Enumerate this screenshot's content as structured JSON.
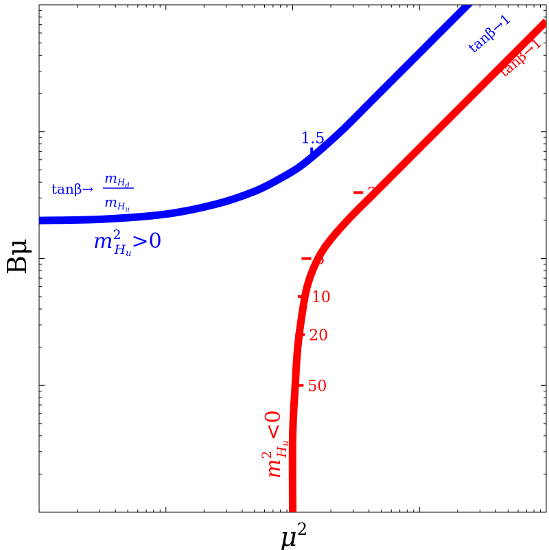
{
  "chart_data": {
    "type": "line",
    "xlabel": "μ",
    "xlabel_sup": "2",
    "ylabel": "Bμ",
    "xscale": "log",
    "yscale": "log",
    "xlim_decades": [
      0,
      4
    ],
    "ylim_decades": [
      0,
      4
    ],
    "grid": false,
    "series": [
      {
        "color": "#0000ff",
        "points": [
          [
            0.0,
            2.3
          ],
          [
            0.5,
            2.31
          ],
          [
            1.0,
            2.35
          ],
          [
            1.4,
            2.43
          ],
          [
            1.7,
            2.53
          ],
          [
            1.9,
            2.63
          ],
          [
            2.05,
            2.72
          ],
          [
            2.2,
            2.84
          ],
          [
            2.4,
            3.02
          ],
          [
            2.6,
            3.22
          ],
          [
            2.8,
            3.42
          ],
          [
            3.0,
            3.62
          ],
          [
            3.2,
            3.82
          ],
          [
            3.4,
            4.02
          ],
          [
            3.5,
            4.12
          ]
        ],
        "ticks": [
          {
            "label": "1.5",
            "at": [
              2.15,
              2.8
            ]
          }
        ],
        "annotations": {
          "upper": {
            "text": "tanβ→1"
          },
          "ratio_prefix": "tanβ→",
          "ratio_num": "m",
          "ratio_num_sub": "H",
          "ratio_num_subsub": "d",
          "ratio_den": "m",
          "ratio_den_sub": "H",
          "ratio_den_subsub": "u",
          "region": {
            "m": "m",
            "sup": "2",
            "sub": "H",
            "subsub": "u",
            "rel": ">0"
          }
        }
      },
      {
        "color": "#ff0000",
        "points": [
          [
            2.0,
            0.0
          ],
          [
            2.0,
            0.6
          ],
          [
            2.02,
            1.0
          ],
          [
            2.04,
            1.3
          ],
          [
            2.08,
            1.6
          ],
          [
            2.12,
            1.8
          ],
          [
            2.2,
            2.0
          ],
          [
            2.3,
            2.15
          ],
          [
            2.45,
            2.32
          ],
          [
            2.65,
            2.52
          ],
          [
            2.85,
            2.72
          ],
          [
            3.05,
            2.92
          ],
          [
            3.25,
            3.12
          ],
          [
            3.45,
            3.32
          ],
          [
            3.65,
            3.52
          ],
          [
            3.85,
            3.72
          ],
          [
            4.0,
            3.87
          ]
        ],
        "ticks": [
          {
            "label": "2",
            "at": [
              2.48,
              2.52
            ]
          },
          {
            "label": "5",
            "at": [
              2.07,
              2.0
            ]
          },
          {
            "label": "10",
            "at": [
              2.04,
              1.7
            ]
          },
          {
            "label": "20",
            "at": [
              2.02,
              1.4
            ]
          },
          {
            "label": "50",
            "at": [
              2.01,
              1.0
            ]
          }
        ],
        "annotations": {
          "upper": {
            "text": "tanβ→1"
          },
          "region": {
            "m": "m",
            "sup": "2",
            "sub": "H",
            "subsub": "u",
            "rel": "<0"
          }
        }
      }
    ]
  }
}
